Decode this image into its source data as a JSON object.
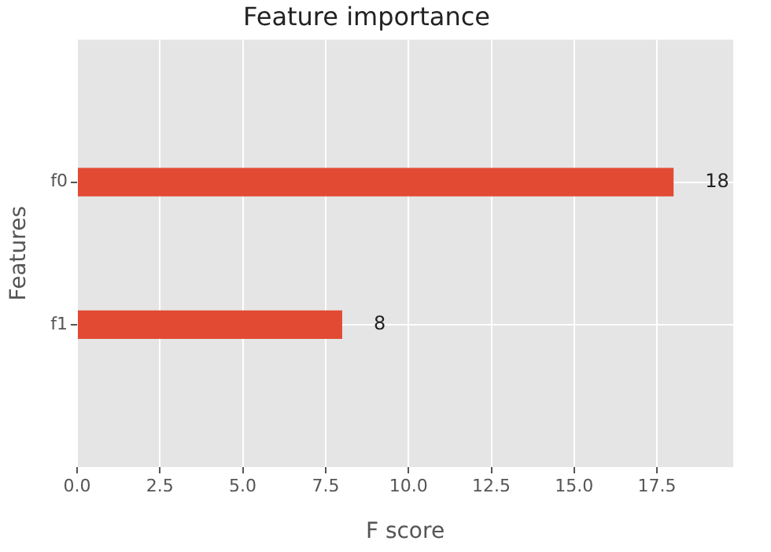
{
  "chart_data": {
    "type": "bar",
    "orientation": "horizontal",
    "title": "Feature importance",
    "xlabel": "F score",
    "ylabel": "Features",
    "categories": [
      "f0",
      "f1"
    ],
    "values": [
      18,
      8
    ],
    "color": "#e24a33",
    "xlim": [
      0,
      19.8
    ],
    "xticks": [
      {
        "value": 0,
        "label": "0.0"
      },
      {
        "value": 2.5,
        "label": "2.5"
      },
      {
        "value": 5,
        "label": "5.0"
      },
      {
        "value": 7.5,
        "label": "7.5"
      },
      {
        "value": 10,
        "label": "10.0"
      },
      {
        "value": 12.5,
        "label": "12.5"
      },
      {
        "value": 15,
        "label": "15.0"
      },
      {
        "value": 17.5,
        "label": "17.5"
      }
    ],
    "grid": true,
    "data_labels": true
  }
}
